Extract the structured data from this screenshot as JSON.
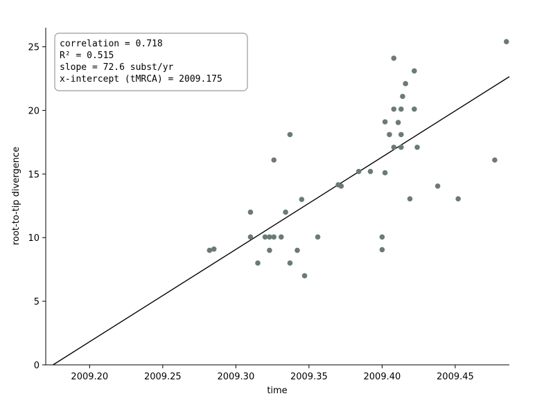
{
  "chart_data": {
    "type": "scatter",
    "xlabel": "time",
    "ylabel": "root-to-tip divergence",
    "xlim": [
      2009.17,
      2009.487
    ],
    "ylim": [
      0,
      26.5
    ],
    "xticks": [
      "2009.20",
      "2009.25",
      "2009.30",
      "2009.35",
      "2009.40",
      "2009.45"
    ],
    "xtick_values": [
      2009.2,
      2009.25,
      2009.3,
      2009.35,
      2009.4,
      2009.45
    ],
    "yticks": [
      "0",
      "5",
      "10",
      "15",
      "20",
      "25"
    ],
    "ytick_values": [
      0,
      5,
      10,
      15,
      20,
      25
    ],
    "grid": false,
    "marker_color": "#6b7b74",
    "line_color": "#000000",
    "annotation": [
      "correlation = 0.718",
      "R² = 0.515",
      "slope = 72.6 subst/yr",
      "x-intercept (tMRCA) = 2009.175"
    ],
    "regression": {
      "slope": 72.6,
      "x_intercept": 2009.175
    },
    "points": [
      [
        2009.282,
        9
      ],
      [
        2009.285,
        9.1
      ],
      [
        2009.31,
        12
      ],
      [
        2009.31,
        10.05
      ],
      [
        2009.315,
        8
      ],
      [
        2009.32,
        10.05
      ],
      [
        2009.323,
        9
      ],
      [
        2009.323,
        10.05
      ],
      [
        2009.326,
        10.05
      ],
      [
        2009.326,
        16.1
      ],
      [
        2009.331,
        10.05
      ],
      [
        2009.334,
        12
      ],
      [
        2009.337,
        18.1
      ],
      [
        2009.337,
        8
      ],
      [
        2009.342,
        9
      ],
      [
        2009.345,
        13
      ],
      [
        2009.347,
        7
      ],
      [
        2009.356,
        10.05
      ],
      [
        2009.37,
        14.15
      ],
      [
        2009.372,
        14.05
      ],
      [
        2009.384,
        15.2
      ],
      [
        2009.392,
        15.2
      ],
      [
        2009.4,
        10.05
      ],
      [
        2009.4,
        9.05
      ],
      [
        2009.402,
        15.1
      ],
      [
        2009.402,
        19.1
      ],
      [
        2009.405,
        18.1
      ],
      [
        2009.408,
        20.1
      ],
      [
        2009.408,
        24.1
      ],
      [
        2009.408,
        17.1
      ],
      [
        2009.411,
        19.05
      ],
      [
        2009.413,
        18.1
      ],
      [
        2009.413,
        20.1
      ],
      [
        2009.413,
        17.1
      ],
      [
        2009.414,
        21.1
      ],
      [
        2009.416,
        22.1
      ],
      [
        2009.419,
        13.05
      ],
      [
        2009.422,
        23.1
      ],
      [
        2009.422,
        20.1
      ],
      [
        2009.424,
        17.1
      ],
      [
        2009.438,
        14.05
      ],
      [
        2009.452,
        13.05
      ],
      [
        2009.477,
        16.1
      ],
      [
        2009.485,
        25.4
      ]
    ]
  }
}
